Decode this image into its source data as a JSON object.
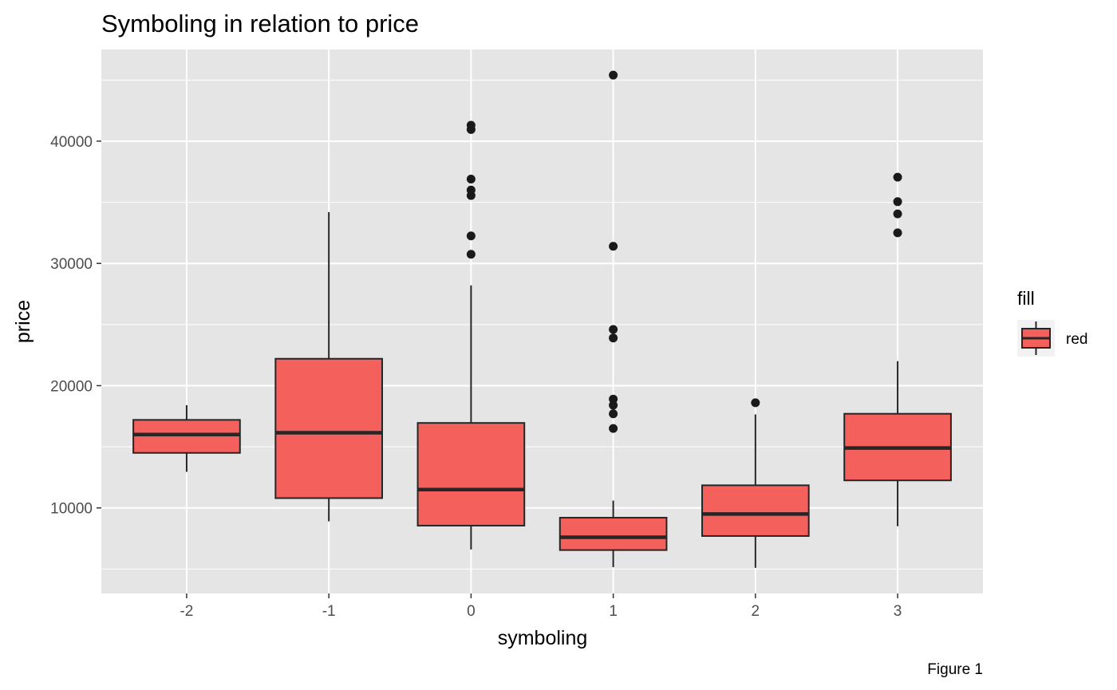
{
  "chart_data": {
    "type": "boxplot",
    "title": "Symboling in relation to price",
    "xlabel": "symboling",
    "ylabel": "price",
    "caption": "Figure 1",
    "categories": [
      "-2",
      "-1",
      "0",
      "1",
      "2",
      "3"
    ],
    "y_ticks": [
      10000,
      20000,
      30000,
      40000
    ],
    "y_tick_labels": [
      "10000",
      "20000",
      "30000",
      "40000"
    ],
    "ylim": [
      3000,
      47500
    ],
    "grid": true,
    "legend": {
      "title": "fill",
      "label": "red",
      "position": "right"
    },
    "colors": {
      "panel": "#e5e5e5",
      "grid": "#ffffff",
      "box_fill": "#f4605c",
      "box_line": "#262626",
      "point": "#1a1a1a"
    },
    "boxes": [
      {
        "x": "-2",
        "min": 12950,
        "q1": 14500,
        "median": 16000,
        "q3": 17200,
        "max": 18400,
        "outliers": []
      },
      {
        "x": "-1",
        "min": 8900,
        "q1": 10800,
        "median": 16150,
        "q3": 22200,
        "max": 34200,
        "outliers": []
      },
      {
        "x": "0",
        "min": 6600,
        "q1": 8550,
        "median": 11500,
        "q3": 16950,
        "max": 28200,
        "outliers": [
          30750,
          32250,
          35550,
          36000,
          36900,
          40950,
          41300
        ]
      },
      {
        "x": "1",
        "min": 5150,
        "q1": 6550,
        "median": 7600,
        "q3": 9200,
        "max": 10600,
        "outliers": [
          16500,
          17700,
          18400,
          18900,
          23900,
          24600,
          31400,
          45400
        ]
      },
      {
        "x": "2",
        "min": 5100,
        "q1": 7700,
        "median": 9500,
        "q3": 11850,
        "max": 17650,
        "outliers": [
          18600
        ]
      },
      {
        "x": "3",
        "min": 8500,
        "q1": 12250,
        "median": 14900,
        "q3": 17700,
        "max": 22000,
        "outliers": [
          32500,
          34050,
          35050,
          37050
        ]
      }
    ]
  }
}
